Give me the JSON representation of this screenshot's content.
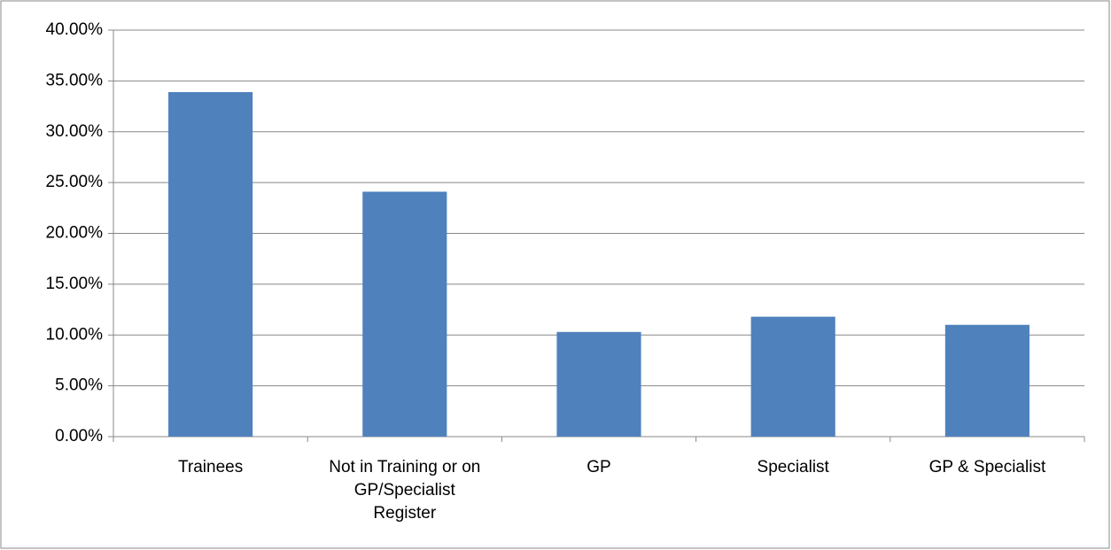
{
  "chart_data": {
    "type": "bar",
    "categories": [
      "Trainees",
      "Not in Training or on GP/Specialist Register",
      "GP",
      "Specialist",
      "GP & Specialist"
    ],
    "values": [
      33.9,
      24.1,
      10.3,
      11.8,
      11.0
    ],
    "color": "#4f81bd",
    "ylim": [
      0,
      40
    ],
    "yticks": [
      {
        "value": 0,
        "label": "0.00%"
      },
      {
        "value": 5,
        "label": "5.00%"
      },
      {
        "value": 10,
        "label": "10.00%"
      },
      {
        "value": 15,
        "label": "15.00%"
      },
      {
        "value": 20,
        "label": "20.00%"
      },
      {
        "value": 25,
        "label": "25.00%"
      },
      {
        "value": 30,
        "label": "30.00%"
      },
      {
        "value": 35,
        "label": "35.00%"
      },
      {
        "value": 40,
        "label": "40.00%"
      }
    ],
    "grid": true
  }
}
